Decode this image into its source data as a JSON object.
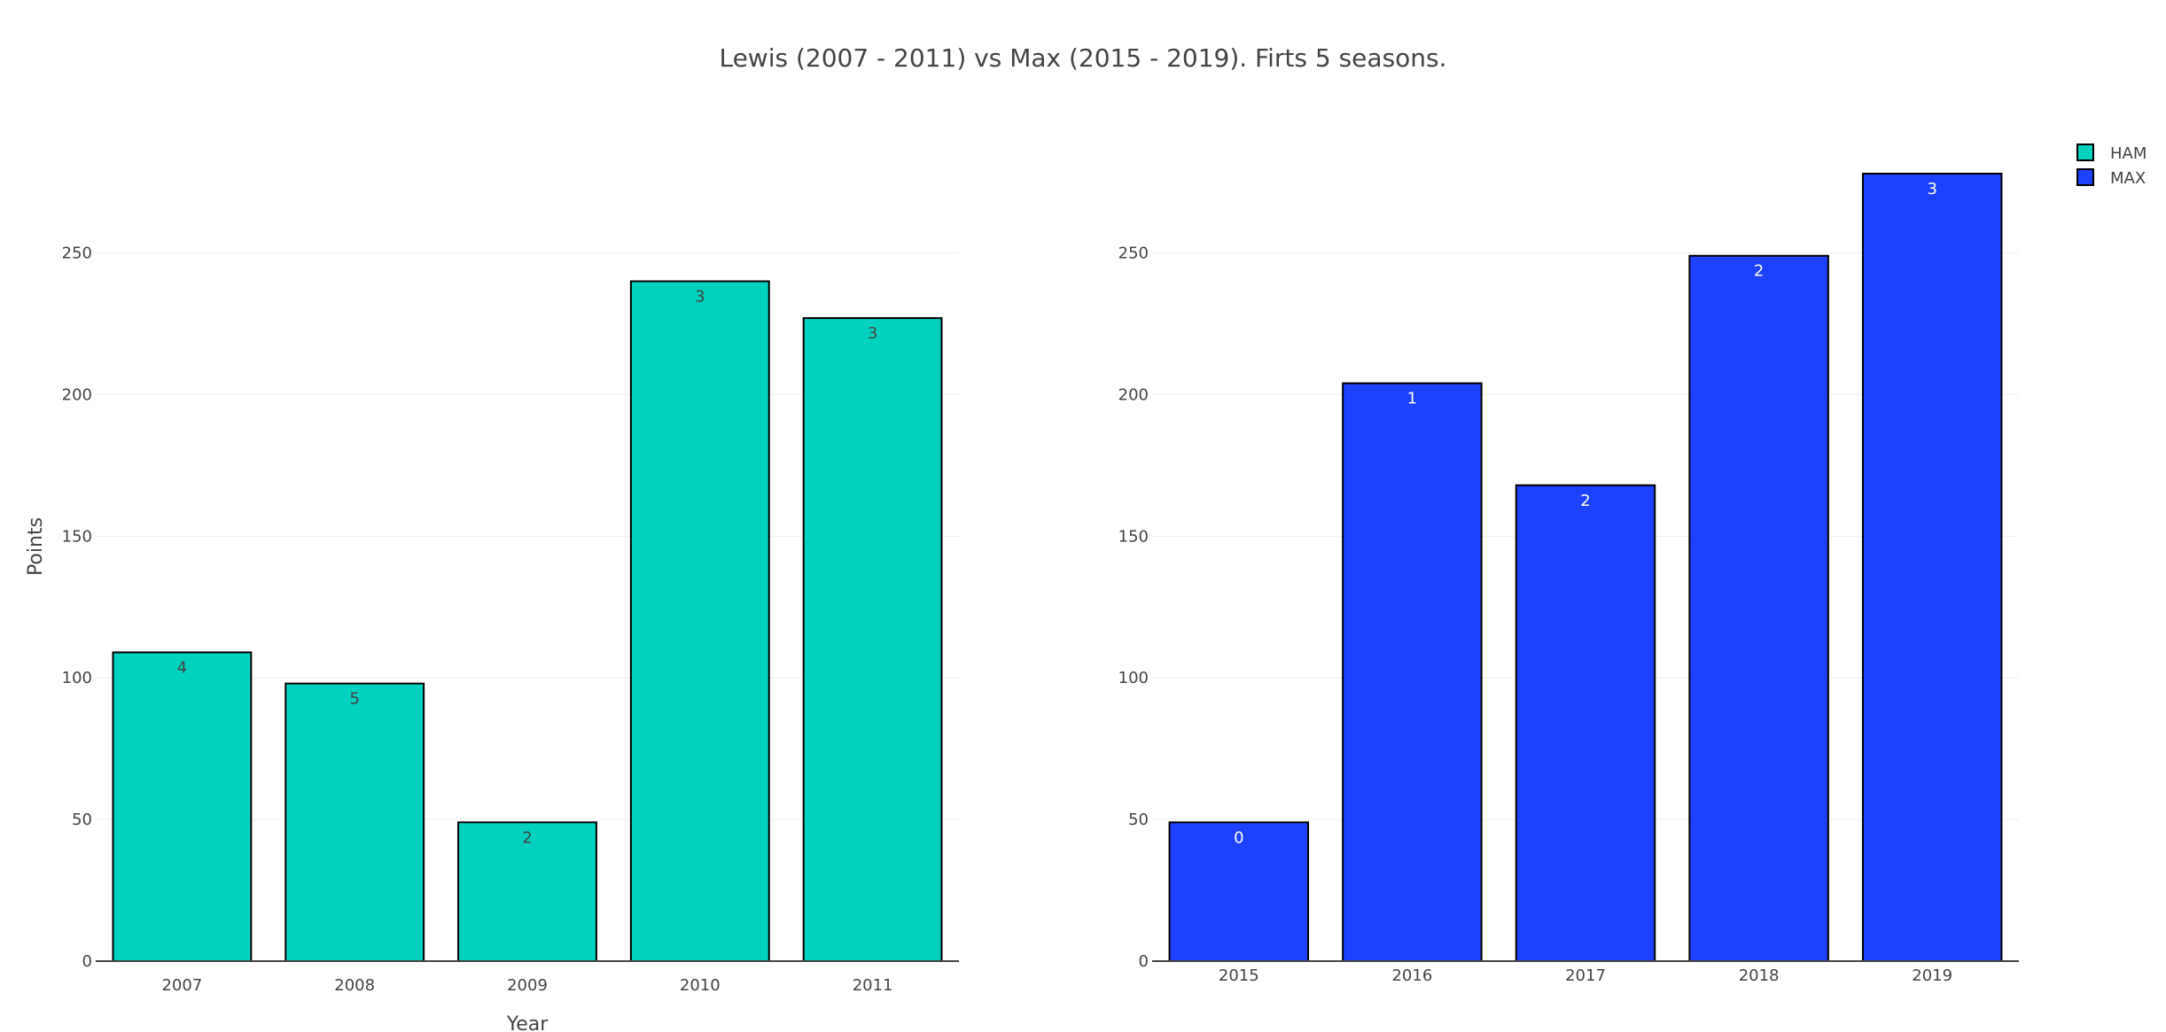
{
  "title": "Lewis (2007 - 2011) vs Max (2015 - 2019). Firts 5 seasons.",
  "colors": {
    "HAM": "#00D2BE",
    "MAX": "#1E41FF",
    "bar_outline": "#000000",
    "grid": "#eeeeee",
    "text": "#444444"
  },
  "legend": {
    "placement": "top-right",
    "items": [
      "HAM",
      "MAX"
    ]
  },
  "chart_data": [
    {
      "type": "bar",
      "series": [
        {
          "name": "HAM",
          "values": [
            109,
            98,
            49,
            240,
            227
          ]
        }
      ],
      "categories": [
        "2007",
        "2008",
        "2009",
        "2010",
        "2011"
      ],
      "bar_labels": [
        "4",
        "5",
        "2",
        "3",
        "3"
      ],
      "xlabel": "Year",
      "ylabel": "Points",
      "yticks": [
        0,
        50,
        100,
        150,
        200,
        250
      ],
      "ylim": [
        0,
        278
      ],
      "grid": true
    },
    {
      "type": "bar",
      "series": [
        {
          "name": "MAX",
          "values": [
            49,
            204,
            168,
            249,
            278
          ]
        }
      ],
      "categories": [
        "2015",
        "2016",
        "2017",
        "2018",
        "2019"
      ],
      "bar_labels": [
        "0",
        "1",
        "2",
        "2",
        "3"
      ],
      "xlabel": "",
      "ylabel": "",
      "yticks": [
        0,
        50,
        100,
        150,
        200,
        250
      ],
      "ylim": [
        0,
        278
      ],
      "grid": true
    }
  ]
}
